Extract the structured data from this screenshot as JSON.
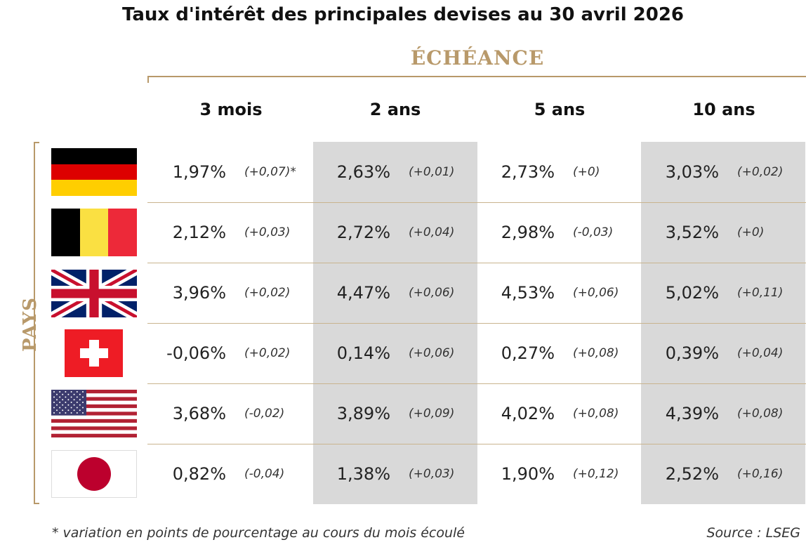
{
  "title": "Taux d'intérêt des principales devises au 30 avril 2026",
  "maturity_label": "ÉCHÉANCE",
  "country_label": "PAYS",
  "columns": [
    "3 mois",
    "2 ans",
    "5 ans",
    "10 ans"
  ],
  "colors": {
    "gold": "#b8996a",
    "shade": "#d9d9d9"
  },
  "rows": [
    {
      "flag": "germany-flag-icon",
      "cells": [
        {
          "value": "1,97%",
          "change": "(+0,07)*"
        },
        {
          "value": "2,63%",
          "change": "(+0,01)"
        },
        {
          "value": "2,73%",
          "change": "(+0)"
        },
        {
          "value": "3,03%",
          "change": "(+0,02)"
        }
      ]
    },
    {
      "flag": "belgium-flag-icon",
      "cells": [
        {
          "value": "2,12%",
          "change": "(+0,03)"
        },
        {
          "value": "2,72%",
          "change": "(+0,04)"
        },
        {
          "value": "2,98%",
          "change": "(-0,03)"
        },
        {
          "value": "3,52%",
          "change": "(+0)"
        }
      ]
    },
    {
      "flag": "uk-flag-icon",
      "cells": [
        {
          "value": "3,96%",
          "change": "(+0,02)"
        },
        {
          "value": "4,47%",
          "change": "(+0,06)"
        },
        {
          "value": "4,53%",
          "change": "(+0,06)"
        },
        {
          "value": "5,02%",
          "change": "(+0,11)"
        }
      ]
    },
    {
      "flag": "switzerland-flag-icon",
      "cells": [
        {
          "value": "-0,06%",
          "change": "(+0,02)"
        },
        {
          "value": "0,14%",
          "change": "(+0,06)"
        },
        {
          "value": "0,27%",
          "change": "(+0,08)"
        },
        {
          "value": "0,39%",
          "change": "(+0,04)"
        }
      ]
    },
    {
      "flag": "usa-flag-icon",
      "cells": [
        {
          "value": "3,68%",
          "change": "(-0,02)"
        },
        {
          "value": "3,89%",
          "change": "(+0,09)"
        },
        {
          "value": "4,02%",
          "change": "(+0,08)"
        },
        {
          "value": "4,39%",
          "change": "(+0,08)"
        }
      ]
    },
    {
      "flag": "japan-flag-icon",
      "cells": [
        {
          "value": "0,82%",
          "change": "(-0,04)"
        },
        {
          "value": "1,38%",
          "change": "(+0,03)"
        },
        {
          "value": "1,90%",
          "change": "(+0,12)"
        },
        {
          "value": "2,52%",
          "change": "(+0,16)"
        }
      ]
    }
  ],
  "footnote": "* variation en points de pourcentage au cours du mois écoulé",
  "source": "Source : LSEG"
}
